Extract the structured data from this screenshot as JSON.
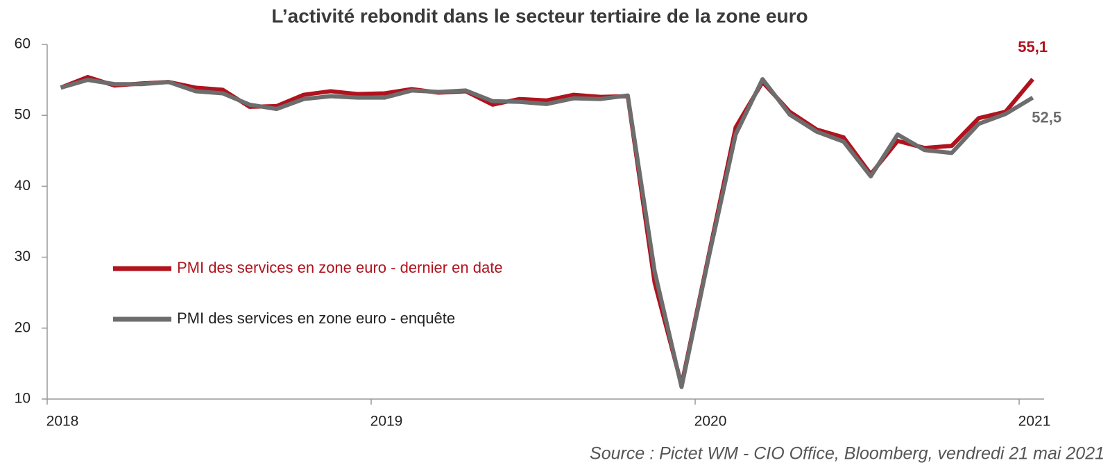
{
  "chart_data": {
    "type": "line",
    "title": "L’activité rebondit dans le secteur tertiaire de la zone euro",
    "source": "Source : Pictet WM - CIO Office, Bloomberg, vendredi 21 mai 2021",
    "x": [
      2018.042,
      2018.125,
      2018.208,
      2018.292,
      2018.375,
      2018.458,
      2018.542,
      2018.625,
      2018.708,
      2018.792,
      2018.875,
      2018.958,
      2019.042,
      2019.125,
      2019.208,
      2019.292,
      2019.375,
      2019.458,
      2019.542,
      2019.625,
      2019.708,
      2019.792,
      2019.875,
      2019.958,
      2020.042,
      2020.125,
      2020.208,
      2020.292,
      2020.375,
      2020.458,
      2020.542,
      2020.625,
      2020.708,
      2020.792,
      2020.875,
      2020.958,
      2021.042
    ],
    "xlim": [
      2018,
      2021.077
    ],
    "xticks": [
      2018,
      2019,
      2020,
      2021
    ],
    "ylim": [
      10,
      60
    ],
    "yticks": [
      10,
      20,
      30,
      40,
      50,
      60
    ],
    "legend": "left",
    "series": [
      {
        "name": "PMI des services en zone euro - dernier en date",
        "color": "#b0131e",
        "values": [
          53.9,
          55.4,
          54.2,
          54.5,
          54.7,
          53.9,
          53.6,
          51.2,
          51.3,
          52.9,
          53.4,
          53.0,
          53.1,
          53.7,
          53.2,
          53.4,
          51.5,
          52.3,
          52.1,
          52.9,
          52.6,
          52.7,
          26.4,
          12.0,
          30.3,
          48.3,
          54.7,
          50.5,
          48.0,
          46.9,
          41.7,
          46.4,
          45.4,
          45.7,
          49.6,
          50.5,
          55.1
        ],
        "value_labels": [
          null,
          null,
          null,
          null,
          null,
          null,
          null,
          null,
          null,
          null,
          null,
          null,
          null,
          null,
          null,
          null,
          null,
          null,
          null,
          null,
          null,
          null,
          null,
          null,
          null,
          null,
          null,
          null,
          null,
          null,
          null,
          null,
          null,
          null,
          null,
          null,
          "55,1"
        ]
      },
      {
        "name": "PMI des services en zone euro - enquête",
        "color": "#6d6d6d",
        "values": [
          53.9,
          55.0,
          54.4,
          54.4,
          54.7,
          53.4,
          53.1,
          51.5,
          50.9,
          52.3,
          52.7,
          52.5,
          52.5,
          53.5,
          53.3,
          53.5,
          52.0,
          51.9,
          51.6,
          52.4,
          52.3,
          52.8,
          28.0,
          11.7,
          30.0,
          47.3,
          55.1,
          50.1,
          47.7,
          46.3,
          41.4,
          47.3,
          45.1,
          44.7,
          48.8,
          50.2,
          52.5
        ],
        "value_labels": [
          null,
          null,
          null,
          null,
          null,
          null,
          null,
          null,
          null,
          null,
          null,
          null,
          null,
          null,
          null,
          null,
          null,
          null,
          null,
          null,
          null,
          null,
          null,
          null,
          null,
          null,
          null,
          null,
          null,
          null,
          null,
          null,
          null,
          null,
          null,
          null,
          "52,5"
        ]
      }
    ]
  }
}
